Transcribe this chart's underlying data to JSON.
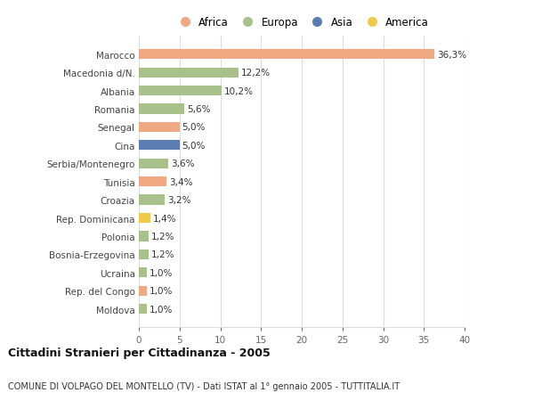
{
  "categories": [
    "Marocco",
    "Macedonia d/N.",
    "Albania",
    "Romania",
    "Senegal",
    "Cina",
    "Serbia/Montenegro",
    "Tunisia",
    "Croazia",
    "Rep. Dominicana",
    "Polonia",
    "Bosnia-Erzegovina",
    "Ucraina",
    "Rep. del Congo",
    "Moldova"
  ],
  "values": [
    36.3,
    12.2,
    10.2,
    5.6,
    5.0,
    5.0,
    3.6,
    3.4,
    3.2,
    1.4,
    1.2,
    1.2,
    1.0,
    1.0,
    1.0
  ],
  "labels": [
    "36,3%",
    "12,2%",
    "10,2%",
    "5,6%",
    "5,0%",
    "5,0%",
    "3,6%",
    "3,4%",
    "3,2%",
    "1,4%",
    "1,2%",
    "1,2%",
    "1,0%",
    "1,0%",
    "1,0%"
  ],
  "continents": [
    "Africa",
    "Europa",
    "Europa",
    "Europa",
    "Africa",
    "Asia",
    "Europa",
    "Africa",
    "Europa",
    "America",
    "Europa",
    "Europa",
    "Europa",
    "Africa",
    "Europa"
  ],
  "continent_colors": {
    "Africa": "#F0A882",
    "Europa": "#A8C08A",
    "Asia": "#5B7DB1",
    "America": "#F0C84A"
  },
  "legend_order": [
    "Africa",
    "Europa",
    "Asia",
    "America"
  ],
  "title": "Cittadini Stranieri per Cittadinanza - 2005",
  "subtitle": "COMUNE DI VOLPAGO DEL MONTELLO (TV) - Dati ISTAT al 1° gennaio 2005 - TUTTITALIA.IT",
  "xlim": [
    0,
    40
  ],
  "xticks": [
    0,
    5,
    10,
    15,
    20,
    25,
    30,
    35,
    40
  ],
  "background_color": "#ffffff",
  "grid_color": "#dddddd"
}
